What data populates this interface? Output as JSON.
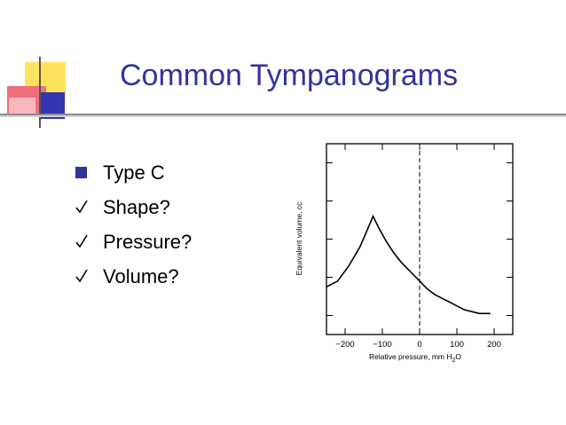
{
  "slide": {
    "title": "Common Tympanograms",
    "accent_color": "#33339a",
    "bullets": [
      {
        "marker": "square-bullet-icon",
        "text": "Type C"
      },
      {
        "marker": "checkmark-icon",
        "text": "Shape?"
      },
      {
        "marker": "checkmark-icon",
        "text": "Pressure?"
      },
      {
        "marker": "checkmark-icon",
        "text": "Volume?"
      }
    ]
  },
  "chart_data": {
    "type": "line",
    "xlabel": "Relative pressure, mm H",
    "xlabel_subscript": "2",
    "xlabel_suffix": "O",
    "ylabel": "Equivalent volume, cc",
    "xlim": [
      -250,
      250
    ],
    "x_ticks": [
      -200,
      -100,
      0,
      100,
      200
    ],
    "x_tick_labels": [
      "−200",
      "−100",
      "0",
      "100",
      "200"
    ],
    "y_tick_count": 5,
    "reference_line_x": 0,
    "series": [
      {
        "x": [
          -250,
          -220,
          -190,
          -160,
          -140,
          -125,
          -110,
          -90,
          -70,
          -50,
          -30,
          -10,
          0,
          20,
          40,
          60,
          80,
          100,
          120,
          140,
          160,
          180,
          190
        ],
        "y": [
          0.25,
          0.28,
          0.36,
          0.46,
          0.55,
          0.62,
          0.56,
          0.49,
          0.43,
          0.38,
          0.34,
          0.3,
          0.28,
          0.24,
          0.21,
          0.19,
          0.17,
          0.15,
          0.13,
          0.12,
          0.11,
          0.11,
          0.11
        ]
      }
    ]
  }
}
